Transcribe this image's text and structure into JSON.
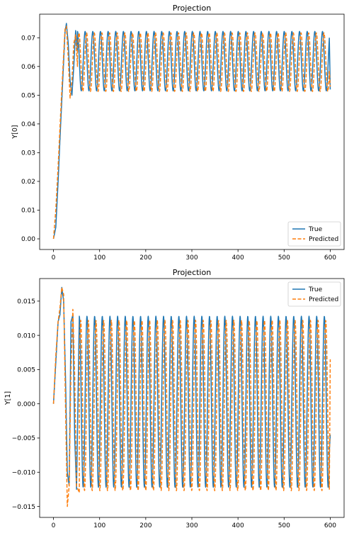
{
  "chart_data": [
    {
      "type": "line",
      "title": "Projection",
      "xlabel": "",
      "ylabel": "Y[0]",
      "xlim": [
        -30,
        630
      ],
      "ylim": [
        -0.0037,
        0.0782
      ],
      "x_ticks": [
        0,
        100,
        200,
        300,
        400,
        500,
        600
      ],
      "y_ticks": [
        0.0,
        0.01,
        0.02,
        0.03,
        0.04,
        0.05,
        0.06,
        0.07
      ],
      "y_tick_labels": [
        "0.00",
        "0.01",
        "0.02",
        "0.03",
        "0.04",
        "0.05",
        "0.06",
        "0.07"
      ],
      "x": [
        0,
        5,
        10,
        15,
        20,
        25,
        28,
        32,
        36,
        40,
        44,
        48,
        52,
        56,
        60,
        80,
        100,
        150,
        200,
        250,
        300,
        350,
        400,
        450,
        500,
        550,
        600
      ],
      "series": [
        {
          "name": "True",
          "color": "#1f77b4",
          "style": "solid",
          "values": [
            0.0,
            0.004,
            0.02,
            0.038,
            0.055,
            0.072,
            0.075,
            0.068,
            0.055,
            0.05,
            0.06,
            0.0725,
            0.065,
            0.052,
            0.051,
            0.0515,
            0.072,
            0.0515,
            0.072,
            0.0515,
            0.072,
            0.0515,
            0.072,
            0.0515,
            0.072,
            0.0515,
            0.052
          ]
        },
        {
          "name": "Predicted",
          "color": "#ff7f0e",
          "style": "dashed",
          "values": [
            0.0,
            0.01,
            0.025,
            0.042,
            0.058,
            0.073,
            0.074,
            0.063,
            0.049,
            0.055,
            0.068,
            0.071,
            0.06,
            0.051,
            0.052,
            0.071,
            0.0515,
            0.072,
            0.0515,
            0.072,
            0.0515,
            0.072,
            0.0515,
            0.072,
            0.0515,
            0.072,
            0.053
          ]
        }
      ],
      "oscillation": {
        "start_x": 52,
        "period": 16.6,
        "true": {
          "max": 0.0722,
          "min": 0.0515,
          "phase_shift": 0
        },
        "predicted": {
          "max": 0.0717,
          "min": 0.0513,
          "phase_shift": 3.2
        }
      },
      "legend": {
        "position": "lower right",
        "entries": [
          "True",
          "Predicted"
        ]
      },
      "grid": false
    },
    {
      "type": "line",
      "title": "Projection",
      "xlabel": "",
      "ylabel": "Y[1]",
      "xlim": [
        -30,
        630
      ],
      "ylim": [
        -0.0166,
        0.0183
      ],
      "x_ticks": [
        0,
        100,
        200,
        300,
        400,
        500,
        600
      ],
      "y_ticks": [
        -0.015,
        -0.01,
        -0.005,
        0.0,
        0.005,
        0.01,
        0.015
      ],
      "y_tick_labels": [
        "−0.015",
        "−0.010",
        "−0.005",
        "0.000",
        "0.005",
        "0.010",
        "0.015"
      ],
      "x": [
        0,
        5,
        10,
        14,
        18,
        22,
        26,
        30,
        34,
        38,
        42,
        46,
        50,
        56,
        64,
        100,
        150,
        200,
        250,
        300,
        350,
        400,
        450,
        500,
        550,
        600
      ],
      "series": [
        {
          "name": "True",
          "color": "#1f77b4",
          "style": "solid",
          "values": [
            0.0,
            0.006,
            0.012,
            0.013,
            0.017,
            0.015,
            0.004,
            -0.01,
            -0.012,
            0.012,
            0.013,
            -0.005,
            -0.0125,
            0.0128,
            -0.0122,
            0.0128,
            -0.0122,
            0.0128,
            -0.0122,
            0.0128,
            -0.0122,
            0.0128,
            -0.0122,
            0.0128,
            -0.0122,
            -0.0045
          ]
        },
        {
          "name": "Predicted",
          "color": "#ff7f0e",
          "style": "dashed",
          "values": [
            0.0,
            0.007,
            0.012,
            0.014,
            0.017,
            0.016,
            0.0,
            -0.015,
            -0.012,
            0.005,
            0.0138,
            0.004,
            -0.012,
            -0.013,
            0.012,
            -0.012,
            0.012,
            -0.012,
            0.012,
            -0.012,
            0.012,
            -0.012,
            0.012,
            -0.012,
            0.012,
            0.0065
          ]
        }
      ],
      "oscillation": {
        "start_x": 56,
        "period": 16.6,
        "true": {
          "max": 0.0128,
          "min": -0.0122,
          "phase_shift": 0
        },
        "predicted": {
          "max": 0.0122,
          "min": -0.0127,
          "phase_shift": 3.0
        }
      },
      "legend": {
        "position": "upper right",
        "entries": [
          "True",
          "Predicted"
        ]
      },
      "grid": false
    }
  ]
}
